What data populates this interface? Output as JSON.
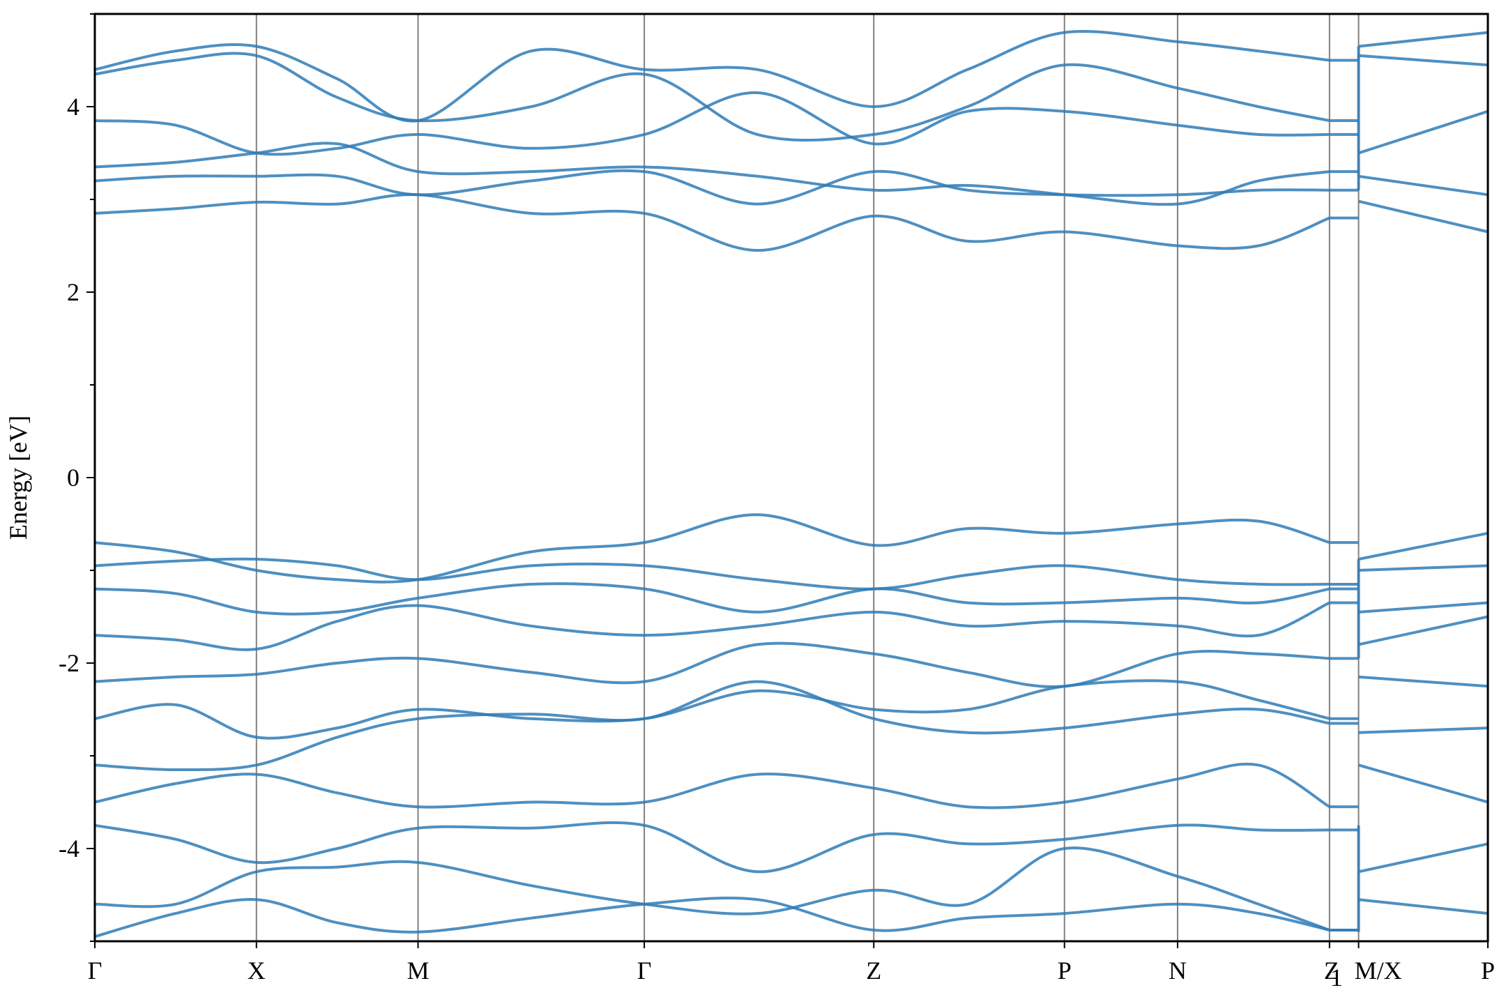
{
  "chart_data": {
    "type": "line",
    "title": "",
    "xlabel": "",
    "ylabel": "Energy [eV]",
    "ylim": [
      -5,
      5
    ],
    "yticks": [
      -4,
      -2,
      0,
      2,
      4
    ],
    "ytick_labels": [
      "-4",
      "-2",
      "0",
      "2",
      "4"
    ],
    "grid": false,
    "line_color": "#2f7bb6",
    "kpath": [
      {
        "label": "Γ",
        "x": 0.0
      },
      {
        "label": "X",
        "x": 0.5
      },
      {
        "label": "M",
        "x": 1.0
      },
      {
        "label": "Γ",
        "x": 1.7
      },
      {
        "label": "Z",
        "x": 2.41
      },
      {
        "label": "P",
        "x": 3.0
      },
      {
        "label": "N",
        "x": 3.35
      },
      {
        "label": "Z",
        "sublabel": "1",
        "x": 3.82
      },
      {
        "label": "M/X",
        "x": 3.91
      },
      {
        "label": "P",
        "x": 4.31
      }
    ],
    "segment_breaks": [
      3.91
    ],
    "series": [
      {
        "x": [
          0,
          0.25,
          0.5,
          0.75,
          1.0,
          1.35,
          1.7,
          2.05,
          2.41,
          2.7,
          3.0,
          3.35,
          3.6,
          3.82
        ],
        "y": [
          -4.95,
          -4.7,
          -4.55,
          -4.8,
          -4.9,
          -4.75,
          -4.6,
          -4.55,
          -4.88,
          -4.75,
          -4.7,
          -4.6,
          -4.7,
          -4.88
        ]
      },
      {
        "x": [
          0,
          0.25,
          0.5,
          0.75,
          1.0,
          1.35,
          1.7,
          2.05,
          2.41,
          2.7,
          3.0,
          3.35,
          3.6,
          3.82
        ],
        "y": [
          -4.6,
          -4.6,
          -4.25,
          -4.2,
          -4.15,
          -4.4,
          -4.6,
          -4.7,
          -4.45,
          -4.6,
          -4.0,
          -4.3,
          -4.6,
          -4.88
        ]
      },
      {
        "x": [
          0,
          0.25,
          0.5,
          0.75,
          1.0,
          1.35,
          1.7,
          2.05,
          2.41,
          2.7,
          3.0,
          3.35,
          3.6,
          3.82
        ],
        "y": [
          -3.75,
          -3.9,
          -4.15,
          -4.0,
          -3.78,
          -3.78,
          -3.75,
          -4.25,
          -3.85,
          -3.95,
          -3.9,
          -3.75,
          -3.8,
          -3.8
        ]
      },
      {
        "x": [
          0,
          0.25,
          0.5,
          0.75,
          1.0,
          1.35,
          1.7,
          2.05,
          2.41,
          2.7,
          3.0,
          3.35,
          3.6,
          3.82
        ],
        "y": [
          -3.5,
          -3.3,
          -3.2,
          -3.4,
          -3.55,
          -3.5,
          -3.5,
          -3.2,
          -3.35,
          -3.55,
          -3.5,
          -3.25,
          -3.1,
          -3.55
        ]
      },
      {
        "x": [
          0,
          0.25,
          0.5,
          0.75,
          1.0,
          1.35,
          1.7,
          2.05,
          2.41,
          2.7,
          3.0,
          3.35,
          3.6,
          3.82
        ],
        "y": [
          -3.1,
          -3.15,
          -3.1,
          -2.8,
          -2.6,
          -2.55,
          -2.6,
          -2.2,
          -2.6,
          -2.75,
          -2.7,
          -2.55,
          -2.5,
          -2.65
        ]
      },
      {
        "x": [
          0,
          0.25,
          0.5,
          0.75,
          1.0,
          1.35,
          1.7,
          2.05,
          2.41,
          2.7,
          3.0,
          3.35,
          3.6,
          3.82
        ],
        "y": [
          -2.6,
          -2.45,
          -2.8,
          -2.7,
          -2.5,
          -2.6,
          -2.6,
          -2.3,
          -2.5,
          -2.5,
          -2.25,
          -2.2,
          -2.4,
          -2.6
        ]
      },
      {
        "x": [
          0,
          0.25,
          0.5,
          0.75,
          1.0,
          1.35,
          1.7,
          2.05,
          2.41,
          2.7,
          3.0,
          3.35,
          3.6,
          3.82
        ],
        "y": [
          -2.2,
          -2.15,
          -2.12,
          -2.0,
          -1.95,
          -2.1,
          -2.2,
          -1.8,
          -1.9,
          -2.1,
          -2.25,
          -1.9,
          -1.9,
          -1.95
        ]
      },
      {
        "x": [
          0,
          0.25,
          0.5,
          0.75,
          1.0,
          1.35,
          1.7,
          2.05,
          2.41,
          2.7,
          3.0,
          3.35,
          3.6,
          3.82
        ],
        "y": [
          -1.7,
          -1.75,
          -1.85,
          -1.55,
          -1.38,
          -1.6,
          -1.7,
          -1.6,
          -1.45,
          -1.6,
          -1.55,
          -1.6,
          -1.7,
          -1.35
        ]
      },
      {
        "x": [
          0,
          0.25,
          0.5,
          0.75,
          1.0,
          1.35,
          1.7,
          2.05,
          2.41,
          2.7,
          3.0,
          3.35,
          3.6,
          3.82
        ],
        "y": [
          -1.2,
          -1.25,
          -1.45,
          -1.45,
          -1.3,
          -1.15,
          -1.2,
          -1.45,
          -1.2,
          -1.35,
          -1.35,
          -1.3,
          -1.35,
          -1.2
        ]
      },
      {
        "x": [
          0,
          0.25,
          0.5,
          0.75,
          1.0,
          1.35,
          1.7,
          2.05,
          2.41,
          2.7,
          3.0,
          3.35,
          3.6,
          3.82
        ],
        "y": [
          -0.95,
          -0.9,
          -0.88,
          -0.95,
          -1.1,
          -0.95,
          -0.95,
          -1.1,
          -1.2,
          -1.05,
          -0.95,
          -1.1,
          -1.15,
          -1.15
        ]
      },
      {
        "x": [
          0,
          0.25,
          0.5,
          0.75,
          1.0,
          1.35,
          1.7,
          2.05,
          2.41,
          2.7,
          3.0,
          3.35,
          3.6,
          3.82
        ],
        "y": [
          -0.7,
          -0.8,
          -1.0,
          -1.1,
          -1.1,
          -0.8,
          -0.7,
          -0.4,
          -0.73,
          -0.55,
          -0.6,
          -0.5,
          -0.47,
          -0.7
        ]
      },
      {
        "x": [
          0,
          0.25,
          0.5,
          0.75,
          1.0,
          1.35,
          1.7,
          2.05,
          2.41,
          2.7,
          3.0,
          3.35,
          3.6,
          3.82
        ],
        "y": [
          2.85,
          2.9,
          2.97,
          2.95,
          3.05,
          2.85,
          2.85,
          2.45,
          2.82,
          2.55,
          2.65,
          2.5,
          2.5,
          2.8
        ]
      },
      {
        "x": [
          0,
          0.25,
          0.5,
          0.75,
          1.0,
          1.35,
          1.7,
          2.05,
          2.41,
          2.7,
          3.0,
          3.35,
          3.6,
          3.82
        ],
        "y": [
          3.2,
          3.25,
          3.25,
          3.25,
          3.05,
          3.2,
          3.3,
          2.95,
          3.3,
          3.1,
          3.05,
          3.05,
          3.1,
          3.1
        ]
      },
      {
        "x": [
          0,
          0.25,
          0.5,
          0.75,
          1.0,
          1.35,
          1.7,
          2.05,
          2.41,
          2.7,
          3.0,
          3.35,
          3.6,
          3.82
        ],
        "y": [
          3.35,
          3.4,
          3.5,
          3.6,
          3.3,
          3.3,
          3.35,
          3.25,
          3.1,
          3.15,
          3.05,
          2.95,
          3.2,
          3.3
        ]
      },
      {
        "x": [
          0,
          0.25,
          0.5,
          0.75,
          1.0,
          1.35,
          1.7,
          2.05,
          2.41,
          2.7,
          3.0,
          3.35,
          3.6,
          3.82
        ],
        "y": [
          3.85,
          3.8,
          3.5,
          3.55,
          3.7,
          3.55,
          3.7,
          4.15,
          3.6,
          3.95,
          3.95,
          3.8,
          3.7,
          3.7
        ]
      },
      {
        "x": [
          0,
          0.25,
          0.5,
          0.75,
          1.0,
          1.35,
          1.7,
          2.05,
          2.41,
          2.7,
          3.0,
          3.35,
          3.6,
          3.82
        ],
        "y": [
          4.35,
          4.5,
          4.55,
          4.1,
          3.85,
          4.0,
          4.35,
          3.7,
          3.7,
          4.0,
          4.45,
          4.2,
          4.0,
          3.85
        ]
      },
      {
        "x": [
          0,
          0.25,
          0.5,
          0.75,
          1.0,
          1.35,
          1.7,
          2.05,
          2.41,
          2.7,
          3.0,
          3.35,
          3.6,
          3.82
        ],
        "y": [
          4.4,
          4.6,
          4.65,
          4.3,
          3.85,
          4.6,
          4.4,
          4.4,
          4.0,
          4.4,
          4.8,
          4.7,
          4.6,
          4.5
        ]
      }
    ],
    "series_after_break": [
      {
        "x": [
          3.91,
          4.31
        ],
        "y": [
          -4.55,
          -4.7
        ]
      },
      {
        "x": [
          3.91,
          4.31
        ],
        "y": [
          -4.25,
          -3.95
        ]
      },
      {
        "x": [
          3.91,
          4.31
        ],
        "y": [
          -3.1,
          -3.5
        ]
      },
      {
        "x": [
          3.91,
          4.31
        ],
        "y": [
          -2.75,
          -2.7
        ]
      },
      {
        "x": [
          3.91,
          4.31
        ],
        "y": [
          -2.15,
          -2.25
        ]
      },
      {
        "x": [
          3.91,
          4.31
        ],
        "y": [
          -1.8,
          -1.5
        ]
      },
      {
        "x": [
          3.91,
          4.31
        ],
        "y": [
          -1.45,
          -1.35
        ]
      },
      {
        "x": [
          3.91,
          4.31
        ],
        "y": [
          -1.0,
          -0.95
        ]
      },
      {
        "x": [
          3.91,
          4.31
        ],
        "y": [
          -0.88,
          -0.6
        ]
      },
      {
        "x": [
          3.91,
          4.31
        ],
        "y": [
          2.98,
          2.65
        ]
      },
      {
        "x": [
          3.91,
          4.31
        ],
        "y": [
          3.25,
          3.05
        ]
      },
      {
        "x": [
          3.91,
          4.31
        ],
        "y": [
          3.5,
          3.95
        ]
      },
      {
        "x": [
          3.91,
          4.31
        ],
        "y": [
          4.55,
          4.45
        ]
      },
      {
        "x": [
          3.91,
          4.31
        ],
        "y": [
          4.65,
          4.8
        ]
      }
    ]
  }
}
